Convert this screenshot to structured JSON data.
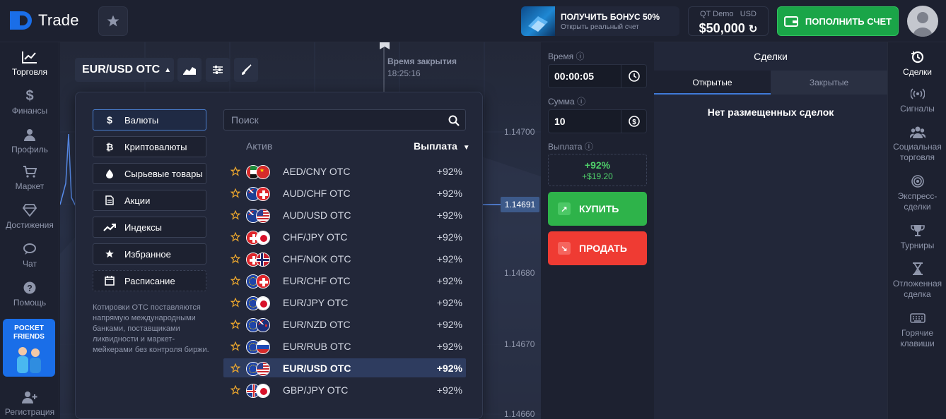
{
  "brand": {
    "name": "Trade"
  },
  "header": {
    "bonus_title": "ПОЛУЧИТЬ БОНУС 50%",
    "bonus_subtitle": "Открыть реальный счет",
    "account_type": "QT Demo",
    "currency": "USD",
    "balance": "$50,000",
    "deposit_label": "ПОПОЛНИТЬ СЧЕТ"
  },
  "left_nav": [
    {
      "label": "Торговля",
      "icon": "chart-line-icon"
    },
    {
      "label": "Финансы",
      "icon": "dollar-icon"
    },
    {
      "label": "Профиль",
      "icon": "user-icon"
    },
    {
      "label": "Маркет",
      "icon": "cart-icon"
    },
    {
      "label": "Достижения",
      "icon": "diamond-icon"
    },
    {
      "label": "Чат",
      "icon": "chat-icon"
    },
    {
      "label": "Помощь",
      "icon": "help-icon"
    }
  ],
  "promo": {
    "line1": "POCKET",
    "line2": "FRIENDS"
  },
  "register_label": "Регистрация",
  "chart": {
    "pair": "EUR/USD OTC",
    "close_label": "Время закрытия",
    "close_time": "18:25:16",
    "current_price": "1.14691",
    "price_levels": [
      "1.14700",
      "1.14680",
      "1.14670",
      "1.14660"
    ]
  },
  "asset_picker": {
    "categories": [
      {
        "label": "Валюты",
        "icon": "dollar-icon"
      },
      {
        "label": "Криптовалюты",
        "icon": "bitcoin-icon"
      },
      {
        "label": "Сырьевые товары",
        "icon": "drop-icon"
      },
      {
        "label": "Акции",
        "icon": "document-icon"
      },
      {
        "label": "Индексы",
        "icon": "trend-icon"
      },
      {
        "label": "Избранное",
        "icon": "star-icon"
      },
      {
        "label": "Расписание",
        "icon": "calendar-icon"
      }
    ],
    "note": "Котировки OTC поставляются напрямую международными банками, поставщиками ликвидности и маркет-мейкерами без контроля биржи.",
    "search_placeholder": "Поиск",
    "col_asset": "Актив",
    "col_payout": "Выплата",
    "assets": [
      {
        "name": "AED/CNY OTC",
        "payout": "+92%",
        "flags": [
          "ae",
          "cn"
        ]
      },
      {
        "name": "AUD/CHF OTC",
        "payout": "+92%",
        "flags": [
          "au",
          "ch"
        ]
      },
      {
        "name": "AUD/USD OTC",
        "payout": "+92%",
        "flags": [
          "au",
          "us"
        ]
      },
      {
        "name": "CHF/JPY OTC",
        "payout": "+92%",
        "flags": [
          "ch",
          "jp"
        ]
      },
      {
        "name": "CHF/NOK OTC",
        "payout": "+92%",
        "flags": [
          "ch",
          "no"
        ]
      },
      {
        "name": "EUR/CHF OTC",
        "payout": "+92%",
        "flags": [
          "eu",
          "ch"
        ]
      },
      {
        "name": "EUR/JPY OTC",
        "payout": "+92%",
        "flags": [
          "eu",
          "jp"
        ]
      },
      {
        "name": "EUR/NZD OTC",
        "payout": "+92%",
        "flags": [
          "eu",
          "nz"
        ]
      },
      {
        "name": "EUR/RUB OTC",
        "payout": "+92%",
        "flags": [
          "eu",
          "ru"
        ]
      },
      {
        "name": "EUR/USD OTC",
        "payout": "+92%",
        "flags": [
          "eu",
          "us"
        ],
        "selected": true
      },
      {
        "name": "GBP/JPY OTC",
        "payout": "+92%",
        "flags": [
          "gb",
          "jp"
        ]
      }
    ]
  },
  "trade_panel": {
    "time_label": "Время",
    "time_value": "00:00:05",
    "amount_label": "Сумма",
    "amount_value": "10",
    "payout_label": "Выплата",
    "payout_percent": "+92%",
    "payout_amount": "+$19.20",
    "buy_label": "КУПИТЬ",
    "sell_label": "ПРОДАТЬ"
  },
  "deals": {
    "title": "Сделки",
    "tab_open": "Открытые",
    "tab_closed": "Закрытые",
    "empty": "Нет размещенных сделок"
  },
  "right_nav": [
    {
      "label": "Сделки",
      "icon": "history-icon"
    },
    {
      "label": "Сигналы",
      "icon": "signal-icon"
    },
    {
      "label": "Социальная торговля",
      "icon": "group-icon"
    },
    {
      "label": "Экспресс-сделки",
      "icon": "target-icon"
    },
    {
      "label": "Турниры",
      "icon": "trophy-icon"
    },
    {
      "label": "Отложенная сделка",
      "icon": "hourglass-icon"
    },
    {
      "label": "Горячие клавиши",
      "icon": "keyboard-icon"
    }
  ],
  "colors": {
    "buy": "#2eb34a",
    "sell": "#ef3b33",
    "accent": "#1a6ee8",
    "deposit": "#1aa548"
  }
}
